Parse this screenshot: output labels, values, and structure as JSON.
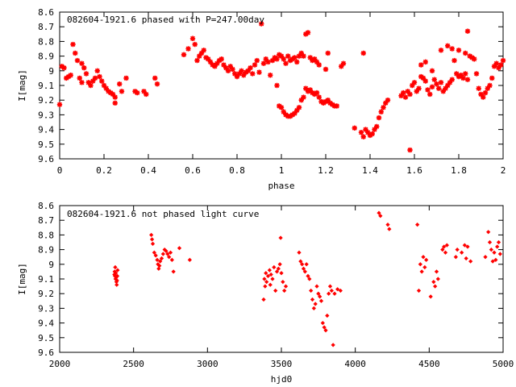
{
  "chart_data": [
    {
      "type": "scatter",
      "title": "082604-1921.6 phased with P=247.00day",
      "xlabel": "phase",
      "ylabel": "I[mag]",
      "xlim": [
        0,
        2
      ],
      "ylim": [
        8.6,
        9.6
      ],
      "y_inverted": true,
      "xticks": [
        "0",
        "0.2",
        "0.4",
        "0.6",
        "0.8",
        "1",
        "1.2",
        "1.4",
        "1.6",
        "1.8",
        "2"
      ],
      "yticks": [
        "8.6",
        "8.7",
        "8.8",
        "8.9",
        "9",
        "9.1",
        "9.2",
        "9.3",
        "9.4",
        "9.5",
        "9.6"
      ],
      "marker_color": "#ff0000",
      "marker": "star",
      "points": [
        [
          0.0,
          9.23
        ],
        [
          0.01,
          8.97
        ],
        [
          0.02,
          8.98
        ],
        [
          0.03,
          9.05
        ],
        [
          0.04,
          9.04
        ],
        [
          0.05,
          9.03
        ],
        [
          0.06,
          8.82
        ],
        [
          0.07,
          8.88
        ],
        [
          0.08,
          8.93
        ],
        [
          0.09,
          9.05
        ],
        [
          0.1,
          9.08
        ],
        [
          0.1,
          8.95
        ],
        [
          0.11,
          8.98
        ],
        [
          0.12,
          9.02
        ],
        [
          0.13,
          9.08
        ],
        [
          0.14,
          9.1
        ],
        [
          0.15,
          9.07
        ],
        [
          0.16,
          9.05
        ],
        [
          0.17,
          9.0
        ],
        [
          0.18,
          9.04
        ],
        [
          0.19,
          9.07
        ],
        [
          0.2,
          9.1
        ],
        [
          0.21,
          9.12
        ],
        [
          0.22,
          9.14
        ],
        [
          0.23,
          9.15
        ],
        [
          0.24,
          9.16
        ],
        [
          0.25,
          9.22
        ],
        [
          0.25,
          9.18
        ],
        [
          0.27,
          9.09
        ],
        [
          0.28,
          9.14
        ],
        [
          0.3,
          9.05
        ],
        [
          0.34,
          9.14
        ],
        [
          0.35,
          9.15
        ],
        [
          0.38,
          9.14
        ],
        [
          0.39,
          9.16
        ],
        [
          0.43,
          9.05
        ],
        [
          0.44,
          9.09
        ],
        [
          0.56,
          8.89
        ],
        [
          0.58,
          8.85
        ],
        [
          0.6,
          8.78
        ],
        [
          0.61,
          8.82
        ],
        [
          0.62,
          8.93
        ],
        [
          0.63,
          8.9
        ],
        [
          0.64,
          8.88
        ],
        [
          0.65,
          8.86
        ],
        [
          0.66,
          8.91
        ],
        [
          0.67,
          8.92
        ],
        [
          0.68,
          8.94
        ],
        [
          0.69,
          8.96
        ],
        [
          0.7,
          8.97
        ],
        [
          0.71,
          8.95
        ],
        [
          0.72,
          8.93
        ],
        [
          0.73,
          8.92
        ],
        [
          0.74,
          8.96
        ],
        [
          0.75,
          8.98
        ],
        [
          0.76,
          9.0
        ],
        [
          0.77,
          8.97
        ],
        [
          0.78,
          8.99
        ],
        [
          0.79,
          9.02
        ],
        [
          0.8,
          9.04
        ],
        [
          0.81,
          9.02
        ],
        [
          0.82,
          9.0
        ],
        [
          0.83,
          9.03
        ],
        [
          0.84,
          9.01
        ],
        [
          0.85,
          9.0
        ],
        [
          0.86,
          8.98
        ],
        [
          0.87,
          9.02
        ],
        [
          0.88,
          8.96
        ],
        [
          0.89,
          8.93
        ],
        [
          0.9,
          9.01
        ],
        [
          0.91,
          8.68
        ],
        [
          0.92,
          8.95
        ],
        [
          0.93,
          8.92
        ],
        [
          0.94,
          8.94
        ],
        [
          0.95,
          9.03
        ],
        [
          0.96,
          8.93
        ],
        [
          0.97,
          8.91
        ],
        [
          0.98,
          8.92
        ],
        [
          0.99,
          8.89
        ],
        [
          1.0,
          8.9
        ],
        [
          1.01,
          8.92
        ],
        [
          1.02,
          8.95
        ],
        [
          1.03,
          8.9
        ],
        [
          1.04,
          8.93
        ],
        [
          1.05,
          8.92
        ],
        [
          1.06,
          8.91
        ],
        [
          1.07,
          8.94
        ],
        [
          1.08,
          8.9
        ],
        [
          1.09,
          8.88
        ],
        [
          1.1,
          8.9
        ],
        [
          1.11,
          8.75
        ],
        [
          1.12,
          8.74
        ],
        [
          1.13,
          8.91
        ],
        [
          1.14,
          8.93
        ],
        [
          1.15,
          8.92
        ],
        [
          1.16,
          8.94
        ],
        [
          1.17,
          8.96
        ],
        [
          1.2,
          8.99
        ],
        [
          1.21,
          8.88
        ],
        [
          0.98,
          9.1
        ],
        [
          0.99,
          9.24
        ],
        [
          1.0,
          9.25
        ],
        [
          1.01,
          9.28
        ],
        [
          1.02,
          9.3
        ],
        [
          1.03,
          9.31
        ],
        [
          1.04,
          9.31
        ],
        [
          1.05,
          9.3
        ],
        [
          1.06,
          9.29
        ],
        [
          1.07,
          9.27
        ],
        [
          1.08,
          9.25
        ],
        [
          1.09,
          9.2
        ],
        [
          1.1,
          9.18
        ],
        [
          1.11,
          9.12
        ],
        [
          1.12,
          9.14
        ],
        [
          1.13,
          9.13
        ],
        [
          1.14,
          9.15
        ],
        [
          1.15,
          9.16
        ],
        [
          1.16,
          9.15
        ],
        [
          1.17,
          9.18
        ],
        [
          1.18,
          9.21
        ],
        [
          1.19,
          9.22
        ],
        [
          1.2,
          9.21
        ],
        [
          1.21,
          9.2
        ],
        [
          1.22,
          9.22
        ],
        [
          1.23,
          9.23
        ],
        [
          1.24,
          9.24
        ],
        [
          1.25,
          9.24
        ],
        [
          1.27,
          8.97
        ],
        [
          1.28,
          8.95
        ],
        [
          1.33,
          9.39
        ],
        [
          1.36,
          9.42
        ],
        [
          1.37,
          9.45
        ],
        [
          1.38,
          9.4
        ],
        [
          1.39,
          9.42
        ],
        [
          1.4,
          9.44
        ],
        [
          1.41,
          9.43
        ],
        [
          1.42,
          9.4
        ],
        [
          1.43,
          9.38
        ],
        [
          1.44,
          9.32
        ],
        [
          1.45,
          9.28
        ],
        [
          1.46,
          9.25
        ],
        [
          1.47,
          9.22
        ],
        [
          1.48,
          9.2
        ],
        [
          1.37,
          8.88
        ],
        [
          1.58,
          9.54
        ],
        [
          1.54,
          9.17
        ],
        [
          1.55,
          9.15
        ],
        [
          1.56,
          9.18
        ],
        [
          1.57,
          9.14
        ],
        [
          1.58,
          9.16
        ],
        [
          1.59,
          9.1
        ],
        [
          1.6,
          9.08
        ],
        [
          1.61,
          9.14
        ],
        [
          1.62,
          9.12
        ],
        [
          1.63,
          9.04
        ],
        [
          1.64,
          9.05
        ],
        [
          1.65,
          9.07
        ],
        [
          1.66,
          9.13
        ],
        [
          1.67,
          9.16
        ],
        [
          1.68,
          9.11
        ],
        [
          1.69,
          9.06
        ],
        [
          1.7,
          9.09
        ],
        [
          1.71,
          9.12
        ],
        [
          1.72,
          9.08
        ],
        [
          1.73,
          9.14
        ],
        [
          1.74,
          9.12
        ],
        [
          1.75,
          9.1
        ],
        [
          1.76,
          9.08
        ],
        [
          1.77,
          9.06
        ],
        [
          1.78,
          8.93
        ],
        [
          1.79,
          9.02
        ],
        [
          1.8,
          9.04
        ],
        [
          1.81,
          9.03
        ],
        [
          1.82,
          9.05
        ],
        [
          1.83,
          9.02
        ],
        [
          1.84,
          9.06
        ],
        [
          1.63,
          8.96
        ],
        [
          1.65,
          8.94
        ],
        [
          1.68,
          9.0
        ],
        [
          1.72,
          8.86
        ],
        [
          1.75,
          8.83
        ],
        [
          1.77,
          8.85
        ],
        [
          1.8,
          8.86
        ],
        [
          1.83,
          8.88
        ],
        [
          1.84,
          8.73
        ],
        [
          1.85,
          8.9
        ],
        [
          1.86,
          8.91
        ],
        [
          1.87,
          8.92
        ],
        [
          1.88,
          9.02
        ],
        [
          1.89,
          9.12
        ],
        [
          1.9,
          9.16
        ],
        [
          1.91,
          9.18
        ],
        [
          1.92,
          9.15
        ],
        [
          1.93,
          9.12
        ],
        [
          1.94,
          9.1
        ],
        [
          1.95,
          9.05
        ],
        [
          1.96,
          8.97
        ],
        [
          1.97,
          8.95
        ],
        [
          1.98,
          8.98
        ],
        [
          1.99,
          8.96
        ],
        [
          2.0,
          8.93
        ]
      ]
    },
    {
      "type": "scatter",
      "title": "082604-1921.6 not phased light curve",
      "xlabel": "hjd0",
      "ylabel": "I[mag]",
      "xlim": [
        2000,
        5000
      ],
      "ylim": [
        8.6,
        9.6
      ],
      "y_inverted": true,
      "xticks": [
        "2000",
        "2500",
        "3000",
        "3500",
        "4000",
        "4500",
        "5000"
      ],
      "yticks": [
        "8.6",
        "8.7",
        "8.8",
        "8.9",
        "9",
        "9.1",
        "9.2",
        "9.3",
        "9.4",
        "9.5",
        "9.6"
      ],
      "marker_color": "#ff0000",
      "marker": "diamond",
      "points": [
        [
          2370,
          9.07
        ],
        [
          2372,
          9.05
        ],
        [
          2374,
          9.08
        ],
        [
          2376,
          9.02
        ],
        [
          2378,
          9.1
        ],
        [
          2380,
          9.06
        ],
        [
          2382,
          9.09
        ],
        [
          2384,
          9.12
        ],
        [
          2386,
          9.14
        ],
        [
          2388,
          9.11
        ],
        [
          2390,
          9.08
        ],
        [
          2392,
          9.04
        ],
        [
          2620,
          8.8
        ],
        [
          2625,
          8.83
        ],
        [
          2630,
          8.86
        ],
        [
          2640,
          8.92
        ],
        [
          2650,
          8.94
        ],
        [
          2660,
          8.97
        ],
        [
          2665,
          9.0
        ],
        [
          2670,
          9.03
        ],
        [
          2675,
          9.01
        ],
        [
          2680,
          8.98
        ],
        [
          2690,
          8.96
        ],
        [
          2700,
          8.93
        ],
        [
          2710,
          8.9
        ],
        [
          2720,
          8.91
        ],
        [
          2730,
          8.93
        ],
        [
          2740,
          8.95
        ],
        [
          2750,
          8.92
        ],
        [
          2760,
          8.97
        ],
        [
          2770,
          9.05
        ],
        [
          2810,
          8.89
        ],
        [
          2880,
          8.97
        ],
        [
          3380,
          9.24
        ],
        [
          3385,
          9.1
        ],
        [
          3390,
          9.15
        ],
        [
          3395,
          9.06
        ],
        [
          3400,
          9.12
        ],
        [
          3410,
          9.08
        ],
        [
          3420,
          9.04
        ],
        [
          3425,
          9.14
        ],
        [
          3430,
          9.07
        ],
        [
          3440,
          9.1
        ],
        [
          3450,
          9.02
        ],
        [
          3460,
          9.18
        ],
        [
          3470,
          9.05
        ],
        [
          3480,
          9.03
        ],
        [
          3490,
          9.0
        ],
        [
          3495,
          8.82
        ],
        [
          3500,
          9.06
        ],
        [
          3510,
          9.12
        ],
        [
          3520,
          9.18
        ],
        [
          3530,
          9.15
        ],
        [
          3620,
          8.92
        ],
        [
          3630,
          8.98
        ],
        [
          3640,
          9.0
        ],
        [
          3650,
          9.03
        ],
        [
          3660,
          9.05
        ],
        [
          3670,
          9.0
        ],
        [
          3680,
          9.08
        ],
        [
          3690,
          9.1
        ],
        [
          3700,
          9.18
        ],
        [
          3710,
          9.24
        ],
        [
          3720,
          9.3
        ],
        [
          3730,
          9.27
        ],
        [
          3740,
          9.15
        ],
        [
          3750,
          9.2
        ],
        [
          3760,
          9.22
        ],
        [
          3770,
          9.25
        ],
        [
          3780,
          9.4
        ],
        [
          3790,
          9.43
        ],
        [
          3800,
          9.45
        ],
        [
          3810,
          9.35
        ],
        [
          3820,
          9.2
        ],
        [
          3830,
          9.15
        ],
        [
          3840,
          9.18
        ],
        [
          3850,
          9.55
        ],
        [
          3860,
          9.2
        ],
        [
          3880,
          9.17
        ],
        [
          3900,
          9.18
        ],
        [
          4160,
          8.65
        ],
        [
          4170,
          8.67
        ],
        [
          4220,
          8.73
        ],
        [
          4230,
          8.76
        ],
        [
          4420,
          8.73
        ],
        [
          4430,
          9.18
        ],
        [
          4440,
          9.0
        ],
        [
          4450,
          9.05
        ],
        [
          4460,
          8.95
        ],
        [
          4470,
          9.02
        ],
        [
          4480,
          8.97
        ],
        [
          4510,
          9.22
        ],
        [
          4530,
          9.12
        ],
        [
          4540,
          9.15
        ],
        [
          4550,
          9.05
        ],
        [
          4560,
          9.1
        ],
        [
          4590,
          8.9
        ],
        [
          4600,
          8.88
        ],
        [
          4610,
          8.92
        ],
        [
          4620,
          8.87
        ],
        [
          4680,
          8.95
        ],
        [
          4690,
          8.9
        ],
        [
          4720,
          8.92
        ],
        [
          4740,
          8.87
        ],
        [
          4750,
          8.96
        ],
        [
          4760,
          8.88
        ],
        [
          4780,
          8.98
        ],
        [
          4880,
          8.95
        ],
        [
          4900,
          8.78
        ],
        [
          4910,
          8.85
        ],
        [
          4920,
          8.9
        ],
        [
          4930,
          8.98
        ],
        [
          4940,
          8.92
        ],
        [
          4950,
          8.97
        ],
        [
          4960,
          8.88
        ],
        [
          4970,
          8.85
        ],
        [
          4980,
          8.93
        ]
      ]
    }
  ]
}
